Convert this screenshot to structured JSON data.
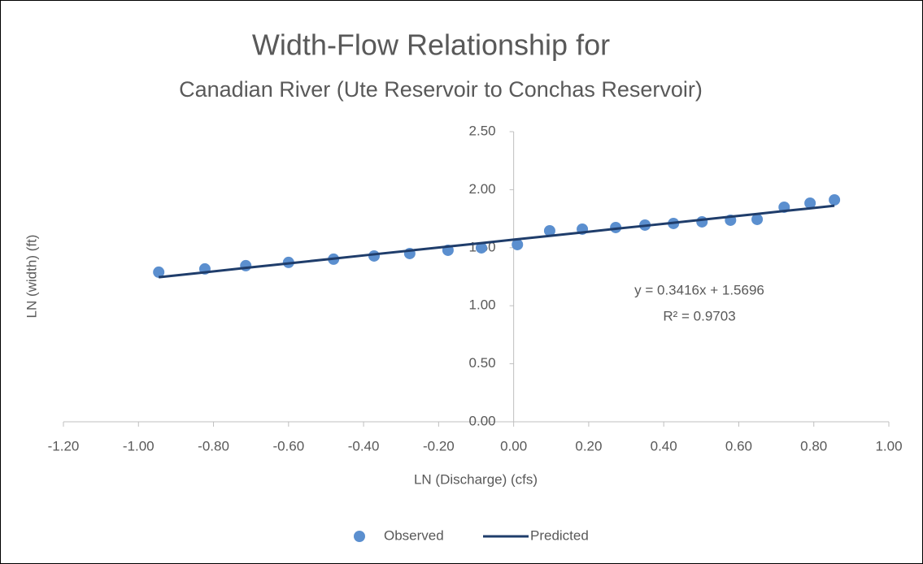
{
  "chart_data": {
    "type": "scatter",
    "title": "Width-Flow Relationship for",
    "subtitle": "Canadian River (Ute Reservoir to Conchas Reservoir)",
    "x_label": "LN (Discharge) (cfs)",
    "y_label": "LN (width) (ft)",
    "x": [
      -0.946,
      -0.823,
      -0.714,
      -0.6,
      -0.48,
      -0.372,
      -0.277,
      -0.175,
      -0.086,
      0.01,
      0.096,
      0.183,
      0.272,
      0.35,
      0.426,
      0.502,
      0.578,
      0.649,
      0.721,
      0.79,
      0.855
    ],
    "series": [
      {
        "name": "Observed",
        "color": "#5b8fcf",
        "mode": "markers",
        "values": [
          1.289,
          1.317,
          1.345,
          1.373,
          1.401,
          1.429,
          1.45,
          1.478,
          1.499,
          1.527,
          1.646,
          1.66,
          1.674,
          1.695,
          1.709,
          1.723,
          1.737,
          1.744,
          1.849,
          1.884,
          1.912
        ]
      },
      {
        "name": "Predicted",
        "color": "#1f3d6b",
        "mode": "lines",
        "values": [
          1.246,
          1.288,
          1.326,
          1.365,
          1.406,
          1.443,
          1.475,
          1.51,
          1.54,
          1.573,
          1.602,
          1.632,
          1.663,
          1.689,
          1.715,
          1.741,
          1.767,
          1.791,
          1.816,
          1.839,
          1.862
        ]
      }
    ],
    "annotations": [
      "y = 0.3416x + 1.5696",
      "R² = 0.9703"
    ],
    "xlim": [
      -1.2,
      1.0
    ],
    "xticks": [
      {
        "value": -1.2,
        "label": "-1.20"
      },
      {
        "value": -1.0,
        "label": "-1.00"
      },
      {
        "value": -0.8,
        "label": "-0.80"
      },
      {
        "value": -0.6,
        "label": "-0.60"
      },
      {
        "value": -0.4,
        "label": "-0.40"
      },
      {
        "value": -0.2,
        "label": "-0.20"
      },
      {
        "value": 0,
        "label": "0.00"
      },
      {
        "value": 0.2,
        "label": "0.20"
      },
      {
        "value": 0.4,
        "label": "0.40"
      },
      {
        "value": 0.6,
        "label": "0.60"
      },
      {
        "value": 0.8,
        "label": "0.80"
      },
      {
        "value": 1.0,
        "label": "1.00"
      }
    ],
    "ylim": [
      0,
      2.5
    ],
    "yticks": [
      {
        "value": 0,
        "label": "0.00"
      },
      {
        "value": 0.5,
        "label": "0.50"
      },
      {
        "value": 1.0,
        "label": "1.00"
      },
      {
        "value": 1.5,
        "label": "1.50"
      },
      {
        "value": 2.0,
        "label": "2.00"
      },
      {
        "value": 2.5,
        "label": "2.50"
      }
    ],
    "grid": false,
    "legend": "bottom"
  }
}
